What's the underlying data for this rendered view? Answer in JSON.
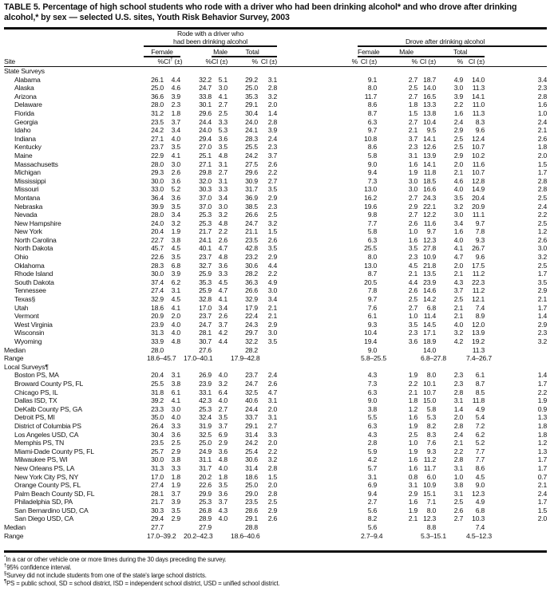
{
  "title": "TABLE 5. Percentage of high school students who rode with a driver who had been drinking alcohol* and who drove after drinking alcohol,* by sex — selected U.S. sites, Youth Risk Behavior Survey, 2003",
  "header": {
    "site": "Site",
    "group1_line1": "Rode with a driver who",
    "group1_line2": "had been drinking alcohol",
    "group2": "Drove after drinking alcohol",
    "female": "Female",
    "male": "Male",
    "total": "Total",
    "pct": "%",
    "ci": "CI (±)",
    "ci_first": "CI",
    "ci_first_mark": "†",
    "ci_first_suffix": " (±)"
  },
  "state_section": {
    "label": "State Surveys"
  },
  "state_rows": [
    [
      "Alabama",
      "26.1",
      "4.4",
      "32.2",
      "5.1",
      "29.2",
      "3.1",
      "9.1",
      "2.7",
      "18.7",
      "4.9",
      "14.0",
      "3.4"
    ],
    [
      "Alaska",
      "25.0",
      "4.6",
      "24.7",
      "3.0",
      "25.0",
      "2.8",
      "8.0",
      "2.5",
      "14.0",
      "3.0",
      "11.3",
      "2.3"
    ],
    [
      "Arizona",
      "36.6",
      "3.9",
      "33.8",
      "4.1",
      "35.3",
      "3.2",
      "11.7",
      "2.7",
      "16.5",
      "3.9",
      "14.1",
      "2.8"
    ],
    [
      "Delaware",
      "28.0",
      "2.3",
      "30.1",
      "2.7",
      "29.1",
      "2.0",
      "8.6",
      "1.8",
      "13.3",
      "2.2",
      "11.0",
      "1.6"
    ],
    [
      "Florida",
      "31.2",
      "1.8",
      "29.6",
      "2.5",
      "30.4",
      "1.4",
      "8.7",
      "1.5",
      "13.8",
      "1.6",
      "11.3",
      "1.0"
    ],
    [
      "Georgia",
      "23.5",
      "3.7",
      "24.4",
      "3.3",
      "24.0",
      "2.8",
      "6.3",
      "2.7",
      "10.4",
      "2.4",
      "8.3",
      "2.4"
    ],
    [
      "Idaho",
      "24.2",
      "3.4",
      "24.0",
      "5.3",
      "24.1",
      "3.9",
      "9.7",
      "2.1",
      "9.5",
      "2.9",
      "9.6",
      "2.1"
    ],
    [
      "Indiana",
      "27.1",
      "4.0",
      "29.4",
      "3.6",
      "28.3",
      "2.4",
      "10.8",
      "3.7",
      "14.1",
      "2.5",
      "12.4",
      "2.6"
    ],
    [
      "Kentucky",
      "23.7",
      "3.5",
      "27.0",
      "3.5",
      "25.5",
      "2.3",
      "8.6",
      "2.3",
      "12.6",
      "2.5",
      "10.7",
      "1.8"
    ],
    [
      "Maine",
      "22.9",
      "4.1",
      "25.1",
      "4.8",
      "24.2",
      "3.7",
      "5.8",
      "3.1",
      "13.9",
      "2.9",
      "10.2",
      "2.0"
    ],
    [
      "Massachusetts",
      "28.0",
      "3.0",
      "27.1",
      "3.1",
      "27.5",
      "2.6",
      "9.0",
      "1.6",
      "14.1",
      "2.0",
      "11.6",
      "1.5"
    ],
    [
      "Michigan",
      "29.3",
      "2.6",
      "29.8",
      "2.7",
      "29.6",
      "2.2",
      "9.4",
      "1.9",
      "11.8",
      "2.1",
      "10.7",
      "1.7"
    ],
    [
      "Mississippi",
      "30.0",
      "3.6",
      "32.0",
      "3.1",
      "30.9",
      "2.7",
      "7.3",
      "3.0",
      "18.5",
      "4.6",
      "12.8",
      "2.8"
    ],
    [
      "Missouri",
      "33.0",
      "5.2",
      "30.3",
      "3.3",
      "31.7",
      "3.5",
      "13.0",
      "3.0",
      "16.6",
      "4.0",
      "14.9",
      "2.8"
    ],
    [
      "Montana",
      "36.4",
      "3.6",
      "37.0",
      "3.4",
      "36.9",
      "2.9",
      "16.2",
      "2.7",
      "24.3",
      "3.5",
      "20.4",
      "2.5"
    ],
    [
      "Nebraska",
      "39.9",
      "3.5",
      "37.0",
      "3.0",
      "38.5",
      "2.3",
      "19.6",
      "2.9",
      "22.1",
      "3.2",
      "20.9",
      "2.4"
    ],
    [
      "Nevada",
      "28.0",
      "3.4",
      "25.3",
      "3.2",
      "26.6",
      "2.5",
      "9.8",
      "2.7",
      "12.2",
      "3.0",
      "11.1",
      "2.2"
    ],
    [
      "New Hampshire",
      "24.0",
      "3.2",
      "25.3",
      "4.8",
      "24.7",
      "3.2",
      "7.7",
      "2.6",
      "11.6",
      "3.4",
      "9.7",
      "2.5"
    ],
    [
      "New York",
      "20.4",
      "1.9",
      "21.7",
      "2.2",
      "21.1",
      "1.5",
      "5.8",
      "1.0",
      "9.7",
      "1.6",
      "7.8",
      "1.2"
    ],
    [
      "North Carolina",
      "22.7",
      "3.8",
      "24.1",
      "2.6",
      "23.5",
      "2.6",
      "6.3",
      "1.6",
      "12.3",
      "4.0",
      "9.3",
      "2.6"
    ],
    [
      "North Dakota",
      "45.7",
      "4.5",
      "40.1",
      "4.7",
      "42.8",
      "3.5",
      "25.5",
      "3.5",
      "27.8",
      "4.1",
      "26.7",
      "3.0"
    ],
    [
      "Ohio",
      "22.6",
      "3.5",
      "23.7",
      "4.8",
      "23.2",
      "2.9",
      "8.0",
      "2.3",
      "10.9",
      "4.7",
      "9.6",
      "3.2"
    ],
    [
      "Oklahoma",
      "28.3",
      "6.8",
      "32.7",
      "3.6",
      "30.6",
      "4.4",
      "13.0",
      "4.5",
      "21.8",
      "2.0",
      "17.5",
      "2.5"
    ],
    [
      "Rhode Island",
      "30.0",
      "3.9",
      "25.9",
      "3.3",
      "28.2",
      "2.2",
      "8.7",
      "2.1",
      "13.5",
      "2.1",
      "11.2",
      "1.7"
    ],
    [
      "South Dakota",
      "37.4",
      "6.2",
      "35.3",
      "4.5",
      "36.3",
      "4.9",
      "20.5",
      "4.4",
      "23.9",
      "4.3",
      "22.3",
      "3.5"
    ],
    [
      "Tennessee",
      "27.4",
      "3.1",
      "25.9",
      "4.7",
      "26.6",
      "3.0",
      "7.8",
      "2.6",
      "14.6",
      "3.7",
      "11.2",
      "2.9"
    ],
    [
      "Texas§",
      "32.9",
      "4.5",
      "32.8",
      "4.1",
      "32.9",
      "3.4",
      "9.7",
      "2.5",
      "14.2",
      "2.5",
      "12.1",
      "2.1"
    ],
    [
      "Utah",
      "18.6",
      "4.1",
      "17.0",
      "3.4",
      "17.9",
      "2.1",
      "7.6",
      "2.7",
      "6.8",
      "2.1",
      "7.4",
      "1.7"
    ],
    [
      "Vermont",
      "20.9",
      "2.0",
      "23.7",
      "2.6",
      "22.4",
      "2.1",
      "6.1",
      "1.0",
      "11.4",
      "2.1",
      "8.9",
      "1.4"
    ],
    [
      "West Virginia",
      "23.9",
      "4.0",
      "24.7",
      "3.7",
      "24.3",
      "2.9",
      "9.3",
      "3.5",
      "14.5",
      "4.0",
      "12.0",
      "2.9"
    ],
    [
      "Wisconsin",
      "31.3",
      "4.0",
      "28.1",
      "4.2",
      "29.7",
      "3.0",
      "10.4",
      "2.3",
      "17.1",
      "3.2",
      "13.9",
      "2.3"
    ],
    [
      "Wyoming",
      "33.9",
      "4.8",
      "30.7",
      "4.4",
      "32.2",
      "3.5",
      "19.4",
      "3.6",
      "18.9",
      "4.2",
      "19.2",
      "3.2"
    ]
  ],
  "state_median": {
    "label": "Median",
    "values": [
      "28.0",
      "27.6",
      "28.2",
      "9.0",
      "14.0",
      "11.3"
    ]
  },
  "state_range": {
    "label": "Range",
    "values": [
      "18.6–45.7",
      "17.0–40.1",
      "17.9–42.8",
      "5.8–25.5",
      "6.8–27.8",
      "7.4–26.7"
    ]
  },
  "local_section": {
    "label": "Local Surveys¶"
  },
  "local_rows": [
    [
      "Boston PS, MA",
      "20.4",
      "3.1",
      "26.9",
      "4.0",
      "23.7",
      "2.4",
      "4.3",
      "1.9",
      "8.0",
      "2.3",
      "6.1",
      "1.4"
    ],
    [
      "Broward County PS, FL",
      "25.5",
      "3.8",
      "23.9",
      "3.2",
      "24.7",
      "2.6",
      "7.3",
      "2.2",
      "10.1",
      "2.3",
      "8.7",
      "1.7"
    ],
    [
      "Chicago PS, IL",
      "31.8",
      "6.1",
      "33.1",
      "6.4",
      "32.5",
      "4.7",
      "6.3",
      "2.1",
      "10.7",
      "2.8",
      "8.5",
      "2.2"
    ],
    [
      "Dallas ISD, TX",
      "39.2",
      "4.1",
      "42.3",
      "4.0",
      "40.6",
      "3.1",
      "9.0",
      "1.8",
      "15.0",
      "3.1",
      "11.8",
      "1.9"
    ],
    [
      "DeKalb County PS, GA",
      "23.3",
      "3.0",
      "25.3",
      "2.7",
      "24.4",
      "2.0",
      "3.8",
      "1.2",
      "5.8",
      "1.4",
      "4.9",
      "0.9"
    ],
    [
      "Detroit PS, MI",
      "35.0",
      "4.0",
      "32.4",
      "3.5",
      "33.7",
      "3.1",
      "5.5",
      "1.6",
      "5.3",
      "2.0",
      "5.4",
      "1.3"
    ],
    [
      "District of Columbia PS",
      "26.4",
      "3.3",
      "31.9",
      "3.7",
      "29.1",
      "2.7",
      "6.3",
      "1.9",
      "8.2",
      "2.8",
      "7.2",
      "1.8"
    ],
    [
      "Los Angeles USD, CA",
      "30.4",
      "3.6",
      "32.5",
      "6.9",
      "31.4",
      "3.3",
      "4.3",
      "2.5",
      "8.3",
      "2.4",
      "6.2",
      "1.8"
    ],
    [
      "Memphis PS, TN",
      "23.5",
      "2.5",
      "25.0",
      "2.9",
      "24.2",
      "2.0",
      "2.8",
      "1.0",
      "7.6",
      "2.1",
      "5.2",
      "1.2"
    ],
    [
      "Miami-Dade County PS, FL",
      "25.7",
      "2.9",
      "24.9",
      "3.6",
      "25.4",
      "2.2",
      "5.9",
      "1.9",
      "9.3",
      "2.2",
      "7.7",
      "1.3"
    ],
    [
      "Milwaukee PS, WI",
      "30.0",
      "3.8",
      "31.1",
      "4.8",
      "30.6",
      "3.2",
      "4.2",
      "1.6",
      "11.2",
      "2.8",
      "7.7",
      "1.7"
    ],
    [
      "New Orleans PS, LA",
      "31.3",
      "3.3",
      "31.7",
      "4.0",
      "31.4",
      "2.8",
      "5.7",
      "1.6",
      "11.7",
      "3.1",
      "8.6",
      "1.7"
    ],
    [
      "New York City PS, NY",
      "17.0",
      "1.8",
      "20.2",
      "1.8",
      "18.6",
      "1.5",
      "3.1",
      "0.8",
      "6.0",
      "1.0",
      "4.5",
      "0.7"
    ],
    [
      "Orange County PS, FL",
      "27.4",
      "1.9",
      "22.6",
      "3.5",
      "25.0",
      "2.0",
      "6.9",
      "3.1",
      "10.9",
      "3.8",
      "9.0",
      "2.1"
    ],
    [
      "Palm Beach County SD, FL",
      "28.1",
      "3.7",
      "29.9",
      "3.6",
      "29.0",
      "2.8",
      "9.4",
      "2.9",
      "15.1",
      "3.1",
      "12.3",
      "2.4"
    ],
    [
      "Philadelphia SD, PA",
      "21.7",
      "3.9",
      "25.3",
      "3.7",
      "23.5",
      "2.5",
      "2.7",
      "1.6",
      "7.1",
      "2.5",
      "4.9",
      "1.7"
    ],
    [
      "San Bernardino USD, CA",
      "30.3",
      "3.5",
      "26.8",
      "4.3",
      "28.6",
      "2.9",
      "5.6",
      "1.9",
      "8.0",
      "2.6",
      "6.8",
      "1.5"
    ],
    [
      "San Diego USD, CA",
      "29.4",
      "2.9",
      "28.9",
      "4.0",
      "29.1",
      "2.6",
      "8.2",
      "2.1",
      "12.3",
      "2.7",
      "10.3",
      "2.0"
    ]
  ],
  "local_median": {
    "label": "Median",
    "values": [
      "27.7",
      "27.9",
      "28.8",
      "5.6",
      "8.8",
      "7.4"
    ]
  },
  "local_range": {
    "label": "Range",
    "values": [
      "17.0–39.2",
      "20.2–42.3",
      "18.6–40.6",
      "2.7–9.4",
      "5.3–15.1",
      "4.5–12.3"
    ]
  },
  "footnotes": [
    {
      "mark": "*",
      "text": "In a car or other vehicle one or more times during the 30 days preceding the survey."
    },
    {
      "mark": "†",
      "text": "95% confidence interval."
    },
    {
      "mark": "§",
      "text": "Survey did not include students from one of the state's large school districts."
    },
    {
      "mark": "¶",
      "text": "PS = public school, SD = school district, ISD = independent school district, USD = unified school district."
    }
  ]
}
